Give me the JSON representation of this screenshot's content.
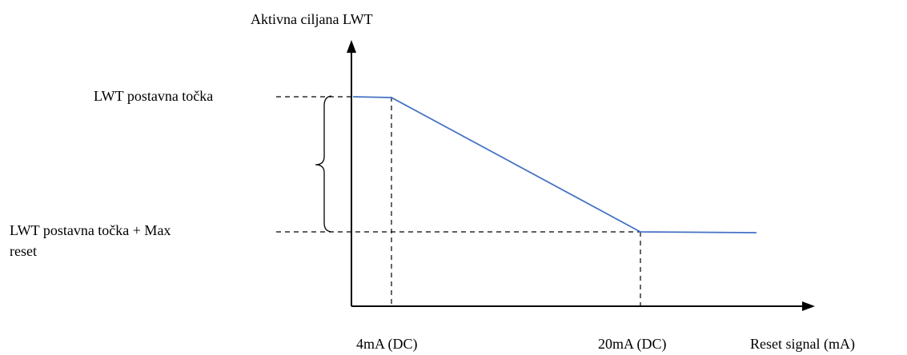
{
  "diagram": {
    "y_axis_title": "Aktivna ciljana LWT",
    "x_axis_title": "Reset signal (mA)",
    "y_label_top": "LWT postavna točka",
    "y_label_bottom_line1": "LWT postavna točka + Max",
    "y_label_bottom_line2": "reset",
    "x_tick_4ma": "4mA (DC)",
    "x_tick_20ma": "20mA (DC)",
    "colors": {
      "curve": "#4472C4",
      "axis": "#000000"
    }
  }
}
